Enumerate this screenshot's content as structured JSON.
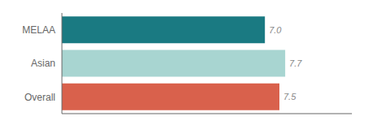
{
  "chart_data": {
    "type": "bar",
    "orientation": "horizontal",
    "categories": [
      "MELAA",
      "Asian",
      "Overall"
    ],
    "values": [
      7.0,
      7.7,
      7.5
    ],
    "value_labels": [
      "7.0",
      "7.7",
      "7.5"
    ],
    "colors": [
      "#1a7a82",
      "#a8d5d1",
      "#d9614c"
    ],
    "xlim": [
      0,
      10
    ],
    "grid": false,
    "data_labels": true,
    "tick_labels": "y"
  }
}
